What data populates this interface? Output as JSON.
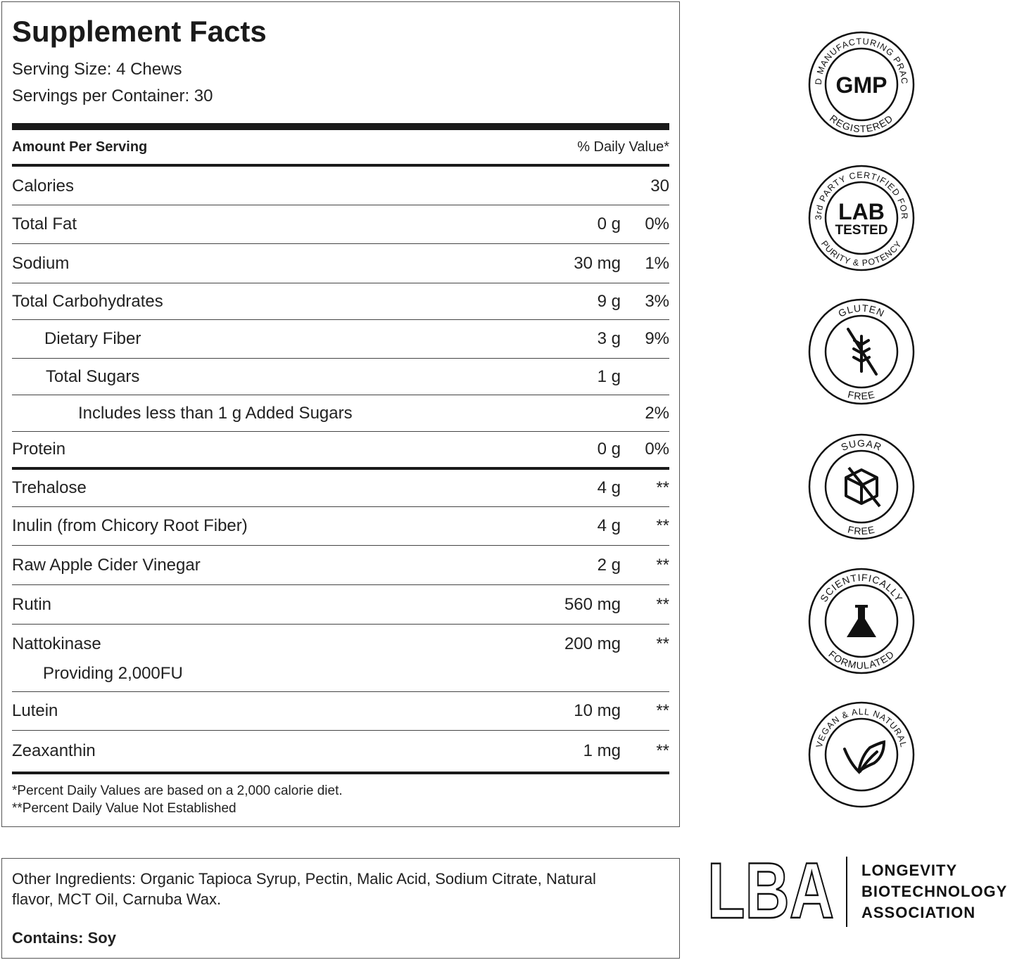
{
  "facts": {
    "title": "Supplement Facts",
    "serving_size": "Serving Size: 4 Chews",
    "servings": "Servings per Container: 30",
    "header": {
      "amount": "Amount Per Serving",
      "daily_value": "% Daily Value*"
    },
    "rows": [
      {
        "name": "Calories",
        "daily_value": "30"
      },
      {
        "name": "Total Fat",
        "amount": "0 g",
        "daily_value": "0%"
      },
      {
        "name": "Sodium",
        "amount": "30 mg",
        "daily_value": "1%"
      },
      {
        "name": "Total Carbohydrates",
        "amount": "9 g",
        "daily_value": "3%"
      },
      {
        "name": "Dietary Fiber",
        "amount": "3 g",
        "daily_value": "9%"
      },
      {
        "name": "Total Sugars",
        "amount": "1 g"
      },
      {
        "name": "Includes less than 1 g Added Sugars",
        "daily_value": "2%"
      },
      {
        "name": "Protein",
        "amount": "0 g",
        "daily_value": "0%"
      },
      {
        "name": "Trehalose",
        "amount": "4 g",
        "daily_value": "**"
      },
      {
        "name": "Inulin (from Chicory Root Fiber)",
        "amount": "4 g",
        "daily_value": "**"
      },
      {
        "name": "Raw Apple Cider Vinegar",
        "amount": "2 g",
        "daily_value": "**"
      },
      {
        "name": "Rutin",
        "amount": "560 mg",
        "daily_value": "**"
      },
      {
        "name": "Nattokinase",
        "amount": "200 mg",
        "daily_value": "**",
        "note": "Providing 2,000FU"
      },
      {
        "name": "Lutein",
        "amount": "10 mg",
        "daily_value": "**"
      },
      {
        "name": "Zeaxanthin",
        "amount": "1 mg",
        "daily_value": "**"
      }
    ],
    "footnotes": [
      "*Percent Daily Values are based on a 2,000 calorie diet.",
      "**Percent Daily Value Not Established"
    ]
  },
  "other": {
    "ingredients": "Other Ingredients: Organic Tapioca Syrup, Pectin, Malic Acid, Sodium Citrate, Natural flavor, MCT Oil, Carnuba Wax.",
    "contains_label": "Contains:",
    "contains": "Soy"
  },
  "badges": [
    {
      "top": "GOOD MANUFACTURING PRACTICE",
      "center": "GMP",
      "bottom": "REGISTERED"
    },
    {
      "top": "3rd PARTY CERTIFIED FOR",
      "center": "LAB",
      "center2": "TESTED",
      "bottom": "PURITY & POTENCY"
    },
    {
      "top": "GLUTEN",
      "bottom": "FREE"
    },
    {
      "top": "SUGAR",
      "bottom": "FREE"
    },
    {
      "top": "SCIENTIFICALLY",
      "bottom": "FORMULATED"
    },
    {
      "top": "VEGAN & ALL NATURAL"
    }
  ],
  "logo": {
    "mark": "LBA",
    "name": [
      "LONGEVITY",
      "BIOTECHNOLOGY",
      "ASSOCIATION"
    ]
  }
}
